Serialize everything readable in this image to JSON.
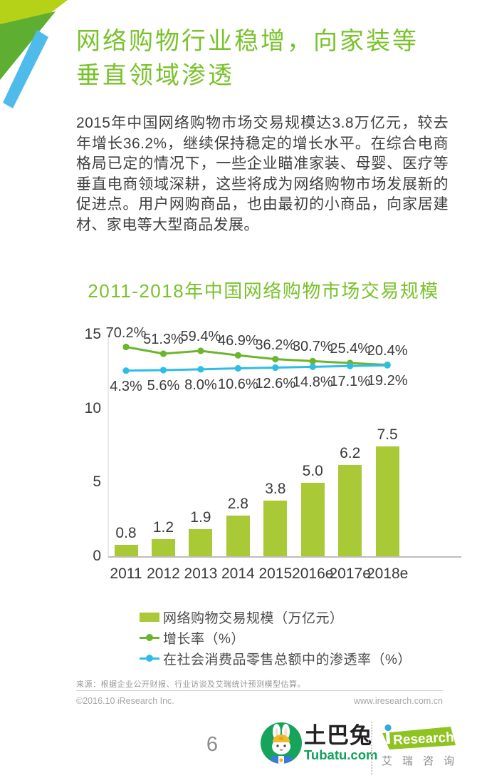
{
  "header": {
    "title": "网络购物行业稳增，向家装等\n垂直领域渗透"
  },
  "intro": {
    "text": "2015年中国网络购物市场交易规模达3.8万亿元，较去年增长36.2%，继续保持稳定的增长水平。在综合电商格局已定的情况下，一些企业瞄准家装、母婴、医疗等垂直电商领域深耕，这些将成为网络购物市场发展新的促进点。用户网购商品，也由最初的小商品，向家居建材、家电等大型商品发展。"
  },
  "chart_data": {
    "type": "bar",
    "title": "2011-2018年中国网络购物市场交易规模",
    "categories": [
      "2011",
      "2012",
      "2013",
      "2014",
      "2015",
      "2016e",
      "2017e",
      "2018e"
    ],
    "series": [
      {
        "name": "网络购物交易规模（万亿元）",
        "type": "bar",
        "values": [
          0.8,
          1.2,
          1.9,
          2.8,
          3.8,
          5.0,
          6.2,
          7.5
        ],
        "color": "#a9c937"
      },
      {
        "name": "增长率（%）",
        "type": "line",
        "unit": "%",
        "values": [
          70.2,
          51.3,
          59.4,
          46.9,
          36.2,
          30.7,
          25.4,
          20.4
        ],
        "color": "#6cb52e"
      },
      {
        "name": "在社会消费品零售总额中的渗透率（%）",
        "type": "line",
        "unit": "%",
        "values": [
          4.3,
          5.6,
          8.0,
          10.6,
          12.6,
          14.8,
          17.1,
          19.2
        ],
        "color": "#2ebde7"
      }
    ],
    "ylabel": "",
    "xlabel": "",
    "y_ticks": [
      0,
      5,
      10,
      15
    ],
    "ylim": [
      0,
      15
    ],
    "grid": false,
    "legend_position": "bottom"
  },
  "colors": {
    "accent_green": "#7ac22c",
    "bar_green": "#a9c937",
    "line_green": "#6cb52e",
    "line_blue": "#2ebde7"
  },
  "footer": {
    "source": "来源：根据企业公开财报、行业访谈及艾瑞统计预测模型估算。",
    "copyright": "©2016.10 iResearch Inc.",
    "website": "www.iresearch.com.cn",
    "page_number": "6"
  },
  "branding": {
    "tubatu": {
      "name_cn": "土巴兔",
      "domain": "Tubatu.com"
    },
    "iresearch": {
      "logo_text": "Research",
      "logo_i": "i",
      "name_cn": "艾瑞咨询"
    }
  }
}
